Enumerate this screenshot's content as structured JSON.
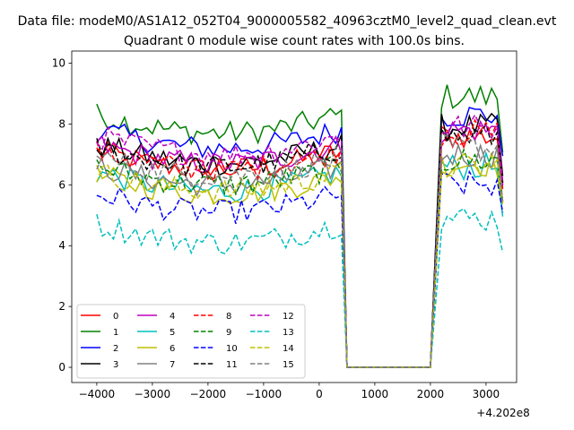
{
  "figure": {
    "suptitle": "Data file: modeM0/AS1A12_052T04_9000005582_40963cztM0_level2_quad_clean.evt",
    "title": "Quadrant 0 module wise count rates with 100.0s bins.",
    "offset_text": "+4.202e8"
  },
  "chart_data": {
    "type": "line",
    "title": "Quadrant 0 module wise count rates with 100.0s bins.",
    "xlabel": "",
    "ylabel": "",
    "x_offset": 420200000,
    "xlim": [
      -4450,
      3550
    ],
    "ylim": [
      -0.5,
      10.4
    ],
    "xticks": [
      -4000,
      -3000,
      -2000,
      -1000,
      0,
      1000,
      2000,
      3000
    ],
    "yticks": [
      0,
      2,
      4,
      6,
      8,
      10
    ],
    "grid": false,
    "legend": {
      "position": "lower-left",
      "columns": 4
    },
    "gap": {
      "from": 400,
      "to": 2000
    },
    "segments": [
      {
        "x_start": -4000,
        "x_end": 400,
        "step": 100
      },
      {
        "x_start": 2000,
        "x_end": 3300,
        "step": 100
      }
    ],
    "series": [
      {
        "name": "0",
        "color": "#ff0000",
        "dash": "solid",
        "level1": 7.1,
        "level2": 7.6
      },
      {
        "name": "1",
        "color": "#008000",
        "dash": "solid",
        "level1": 8.3,
        "level2": 8.9
      },
      {
        "name": "2",
        "color": "#0000ff",
        "dash": "solid",
        "level1": 7.8,
        "level2": 8.3
      },
      {
        "name": "3",
        "color": "#000000",
        "dash": "solid",
        "level1": 7.3,
        "level2": 7.9
      },
      {
        "name": "4",
        "color": "#bf00bf",
        "dash": "solid",
        "level1": 7.3,
        "level2": 7.8
      },
      {
        "name": "5",
        "color": "#00bfbf",
        "dash": "solid",
        "level1": 6.4,
        "level2": 6.6
      },
      {
        "name": "6",
        "color": "#bfbf00",
        "dash": "solid",
        "level1": 6.3,
        "level2": 6.7
      },
      {
        "name": "7",
        "color": "#808080",
        "dash": "solid",
        "level1": 6.6,
        "level2": 7.0
      },
      {
        "name": "8",
        "color": "#ff0000",
        "dash": "dashed",
        "level1": 7.1,
        "level2": 7.7
      },
      {
        "name": "9",
        "color": "#008000",
        "dash": "dashed",
        "level1": 6.6,
        "level2": 6.8
      },
      {
        "name": "10",
        "color": "#0000ff",
        "dash": "dashed",
        "level1": 5.7,
        "level2": 6.0
      },
      {
        "name": "11",
        "color": "#000000",
        "dash": "dashed",
        "level1": 7.2,
        "level2": 7.6
      },
      {
        "name": "12",
        "color": "#bf00bf",
        "dash": "dashed",
        "level1": 7.6,
        "level2": 7.9
      },
      {
        "name": "13",
        "color": "#00bfbf",
        "dash": "dashed",
        "level1": 4.7,
        "level2": 4.9
      },
      {
        "name": "14",
        "color": "#bfbf00",
        "dash": "dashed",
        "level1": 6.4,
        "level2": 6.6
      },
      {
        "name": "15",
        "color": "#808080",
        "dash": "dashed",
        "level1": 6.9,
        "level2": 7.2
      }
    ]
  }
}
